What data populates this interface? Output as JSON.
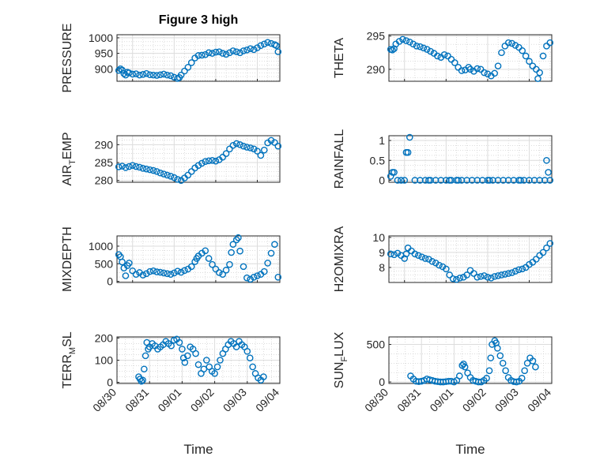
{
  "figure": {
    "title": "Figure 3 high",
    "xlabel": "Time"
  },
  "colors": {
    "marker": "#0072BD",
    "axis": "#262626",
    "grid": "#c8c8c8"
  },
  "chart_data": [
    {
      "type": "scatter",
      "ylabel": "PRESSURE",
      "ylabel_sub": "",
      "ylim": [
        860,
        1010
      ],
      "yticks": [
        900,
        950,
        1000
      ],
      "x": [
        "2011-08-30T16:00",
        "2011-08-30T17:00",
        "2011-08-30T18:00",
        "2011-08-30T19:00",
        "2011-08-30T20:00",
        "2011-08-30T21:00",
        "2011-08-30T22:00",
        "2011-08-31T00:00",
        "2011-08-31T02:00",
        "2011-08-31T04:00",
        "2011-08-31T06:00",
        "2011-08-31T08:00",
        "2011-08-31T10:00",
        "2011-08-31T12:00",
        "2011-08-31T14:00",
        "2011-08-31T16:00",
        "2011-08-31T18:00",
        "2011-08-31T20:00",
        "2011-08-31T22:00",
        "2011-09-01T00:00",
        "2011-09-01T02:00",
        "2011-09-01T03:00",
        "2011-09-01T04:00",
        "2011-09-01T06:00",
        "2011-09-01T08:00",
        "2011-09-01T10:00",
        "2011-09-01T12:00",
        "2011-09-01T14:00",
        "2011-09-01T16:00",
        "2011-09-01T18:00",
        "2011-09-01T20:00",
        "2011-09-01T22:00",
        "2011-09-02T00:00",
        "2011-09-02T02:00",
        "2011-09-02T04:00",
        "2011-09-02T06:00",
        "2011-09-02T08:00",
        "2011-09-02T10:00",
        "2011-09-02T12:00",
        "2011-09-02T14:00",
        "2011-09-02T16:00",
        "2011-09-02T18:00",
        "2011-09-02T20:00",
        "2011-09-02T22:00",
        "2011-09-03T00:00",
        "2011-09-03T02:00",
        "2011-09-03T04:00",
        "2011-09-03T06:00",
        "2011-09-03T08:00",
        "2011-09-03T10:00",
        "2011-09-03T11:00",
        "2011-09-03T12:00"
      ],
      "values": [
        895,
        900,
        896,
        885,
        880,
        889,
        887,
        883,
        884,
        880,
        882,
        885,
        881,
        880,
        879,
        881,
        883,
        880,
        878,
        873,
        869,
        872,
        880,
        893,
        905,
        920,
        935,
        943,
        944,
        946,
        952,
        950,
        954,
        955,
        950,
        947,
        952,
        958,
        955,
        952,
        958,
        961,
        965,
        962,
        968,
        975,
        980,
        985,
        982,
        978,
        975,
        955
      ]
    },
    {
      "type": "scatter",
      "ylabel": "THETA",
      "ylabel_sub": "",
      "ylim": [
        288.2,
        295.2
      ],
      "yticks": [
        290,
        295
      ],
      "x": [
        "2011-08-30T16:00",
        "2011-08-30T17:00",
        "2011-08-30T18:00",
        "2011-08-30T19:00",
        "2011-08-30T21:00",
        "2011-08-30T23:00",
        "2011-08-31T01:00",
        "2011-08-31T03:00",
        "2011-08-31T05:00",
        "2011-08-31T07:00",
        "2011-08-31T09:00",
        "2011-08-31T11:00",
        "2011-08-31T13:00",
        "2011-08-31T15:00",
        "2011-08-31T17:00",
        "2011-08-31T19:00",
        "2011-08-31T21:00",
        "2011-08-31T23:00",
        "2011-09-01T01:00",
        "2011-09-01T03:00",
        "2011-09-01T05:00",
        "2011-09-01T07:00",
        "2011-09-01T09:00",
        "2011-09-01T11:00",
        "2011-09-01T13:00",
        "2011-09-01T14:00",
        "2011-09-01T16:00",
        "2011-09-01T18:00",
        "2011-09-01T20:00",
        "2011-09-01T22:00",
        "2011-09-02T00:00",
        "2011-09-02T02:00",
        "2011-09-02T04:00",
        "2011-09-02T06:00",
        "2011-09-02T08:00",
        "2011-09-02T10:00",
        "2011-09-02T12:00",
        "2011-09-02T14:00",
        "2011-09-02T16:00",
        "2011-09-02T18:00",
        "2011-09-02T20:00",
        "2011-09-02T22:00",
        "2011-09-03T00:00",
        "2011-09-03T02:00",
        "2011-09-03T04:00",
        "2011-09-03T05:00",
        "2011-09-03T06:00",
        "2011-09-03T08:00",
        "2011-09-03T10:00",
        "2011-09-03T12:00"
      ],
      "values": [
        293.0,
        292.9,
        293.1,
        293.8,
        294.2,
        294.5,
        294.3,
        294.1,
        293.8,
        293.5,
        293.4,
        293.2,
        293.0,
        292.7,
        292.4,
        292.0,
        291.8,
        292.2,
        292.0,
        291.5,
        291.0,
        290.3,
        289.8,
        289.9,
        290.3,
        290.0,
        289.7,
        290.1,
        290.0,
        289.5,
        289.3,
        289.0,
        289.4,
        290.5,
        292.5,
        293.5,
        294.0,
        293.9,
        293.6,
        293.3,
        292.8,
        292.0,
        291.2,
        290.5,
        290.0,
        288.6,
        289.5,
        292.0,
        293.5,
        294.0
      ]
    },
    {
      "type": "scatter",
      "ylabel": "AIR",
      "ylabel_sub": "T",
      "ylabel_rest": "EMP",
      "ylim": [
        279.5,
        292.5
      ],
      "yticks": [
        280,
        285,
        290
      ],
      "x": [
        "2011-08-30T16:00",
        "2011-08-30T18:00",
        "2011-08-30T20:00",
        "2011-08-30T22:00",
        "2011-08-31T00:00",
        "2011-08-31T02:00",
        "2011-08-31T04:00",
        "2011-08-31T06:00",
        "2011-08-31T08:00",
        "2011-08-31T10:00",
        "2011-08-31T12:00",
        "2011-08-31T14:00",
        "2011-08-31T16:00",
        "2011-08-31T18:00",
        "2011-08-31T20:00",
        "2011-08-31T22:00",
        "2011-09-01T00:00",
        "2011-09-01T02:00",
        "2011-09-01T04:00",
        "2011-09-01T06:00",
        "2011-09-01T08:00",
        "2011-09-01T10:00",
        "2011-09-01T12:00",
        "2011-09-01T14:00",
        "2011-09-01T16:00",
        "2011-09-01T18:00",
        "2011-09-01T20:00",
        "2011-09-01T22:00",
        "2011-09-02T00:00",
        "2011-09-02T02:00",
        "2011-09-02T04:00",
        "2011-09-02T06:00",
        "2011-09-02T08:00",
        "2011-09-02T10:00",
        "2011-09-02T12:00",
        "2011-09-02T14:00",
        "2011-09-02T16:00",
        "2011-09-02T18:00",
        "2011-09-02T20:00",
        "2011-09-02T22:00",
        "2011-09-03T00:00",
        "2011-09-03T02:00",
        "2011-09-03T04:00",
        "2011-09-03T06:00",
        "2011-09-03T08:00",
        "2011-09-03T10:00",
        "2011-09-03T12:00"
      ],
      "values": [
        283.8,
        284.0,
        283.6,
        283.9,
        284.2,
        283.9,
        283.7,
        283.4,
        283.2,
        283.0,
        282.8,
        282.5,
        282.1,
        281.8,
        281.5,
        281.2,
        280.8,
        280.3,
        280.0,
        280.7,
        281.5,
        282.5,
        283.5,
        284.2,
        284.8,
        285.3,
        285.5,
        285.6,
        285.4,
        285.8,
        286.5,
        287.5,
        288.8,
        289.8,
        290.3,
        290.0,
        289.6,
        289.3,
        289.1,
        288.8,
        288.2,
        287.0,
        288.5,
        290.5,
        291.2,
        290.6,
        289.6
      ]
    },
    {
      "type": "scatter",
      "ylabel": "RAINFALL",
      "ylabel_sub": "",
      "ylim": [
        -0.05,
        1.12
      ],
      "yticks": [
        0,
        0.5,
        1
      ],
      "x": [
        "2011-08-30T16:00",
        "2011-08-30T17:00",
        "2011-08-30T18:00",
        "2011-08-30T20:00",
        "2011-08-30T22:00",
        "2011-08-31T00:00",
        "2011-08-31T01:00",
        "2011-08-31T02:00",
        "2011-08-31T03:00",
        "2011-08-31T06:00",
        "2011-08-31T09:00",
        "2011-08-31T12:00",
        "2011-08-31T15:00",
        "2011-08-31T18:00",
        "2011-08-31T21:00",
        "2011-09-01T00:00",
        "2011-09-01T03:00",
        "2011-09-01T06:00",
        "2011-09-01T09:00",
        "2011-09-01T12:00",
        "2011-09-01T15:00",
        "2011-09-01T18:00",
        "2011-09-01T21:00",
        "2011-09-02T00:00",
        "2011-09-02T03:00",
        "2011-09-02T06:00",
        "2011-09-02T09:00",
        "2011-09-02T12:00",
        "2011-09-02T15:00",
        "2011-09-02T18:00",
        "2011-09-02T21:00",
        "2011-09-03T00:00",
        "2011-09-03T03:00",
        "2011-09-03T06:00",
        "2011-09-03T09:00",
        "2011-09-03T10:00",
        "2011-09-03T11:00",
        "2011-09-03T12:00",
        "2011-08-31T14:00",
        "2011-09-01T02:00",
        "2011-09-01T07:00",
        "2011-09-02T01:00",
        "2011-09-02T19:00"
      ],
      "values": [
        0.1,
        0.2,
        0.2,
        0.0,
        0.0,
        0.0,
        0.7,
        0.7,
        1.08,
        0.0,
        0.0,
        0.0,
        0.0,
        0.0,
        0.0,
        0.0,
        0.0,
        0.0,
        0.0,
        0.0,
        0.0,
        0.0,
        0.0,
        0.0,
        0.0,
        0.0,
        0.0,
        0.0,
        0.0,
        0.0,
        0.0,
        0.0,
        0.0,
        0.0,
        0.0,
        0.5,
        0.2,
        0.0,
        0.0,
        0.0,
        0.0,
        0.0,
        0.0
      ]
    },
    {
      "type": "scatter",
      "ylabel": "MIXDEPTH",
      "ylabel_sub": "",
      "ylim": [
        -30,
        1290
      ],
      "yticks": [
        0,
        500,
        1000
      ],
      "x": [
        "2011-08-30T16:00",
        "2011-08-30T17:00",
        "2011-08-30T18:00",
        "2011-08-30T19:00",
        "2011-08-30T20:00",
        "2011-08-30T21:00",
        "2011-08-30T22:00",
        "2011-08-31T00:00",
        "2011-08-31T02:00",
        "2011-08-31T04:00",
        "2011-08-31T06:00",
        "2011-08-31T08:00",
        "2011-08-31T10:00",
        "2011-08-31T12:00",
        "2011-08-31T14:00",
        "2011-08-31T16:00",
        "2011-08-31T18:00",
        "2011-08-31T20:00",
        "2011-08-31T22:00",
        "2011-09-01T00:00",
        "2011-09-01T02:00",
        "2011-09-01T04:00",
        "2011-09-01T06:00",
        "2011-09-01T08:00",
        "2011-09-01T10:00",
        "2011-09-01T12:00",
        "2011-09-01T13:00",
        "2011-09-01T14:00",
        "2011-09-01T16:00",
        "2011-09-01T18:00",
        "2011-09-01T20:00",
        "2011-09-01T22:00",
        "2011-09-02T00:00",
        "2011-09-02T02:00",
        "2011-09-02T04:00",
        "2011-09-02T06:00",
        "2011-09-02T08:00",
        "2011-09-02T09:00",
        "2011-09-02T10:00",
        "2011-09-02T12:00",
        "2011-09-02T13:00",
        "2011-09-02T14:00",
        "2011-09-02T16:00",
        "2011-09-02T18:00",
        "2011-09-02T20:00",
        "2011-09-02T22:00",
        "2011-09-03T00:00",
        "2011-09-03T02:00",
        "2011-09-03T04:00",
        "2011-09-03T06:00",
        "2011-09-03T08:00",
        "2011-09-03T10:00",
        "2011-09-03T12:00"
      ],
      "values": [
        760,
        700,
        550,
        380,
        160,
        450,
        520,
        300,
        200,
        250,
        180,
        220,
        280,
        300,
        270,
        260,
        240,
        220,
        200,
        240,
        290,
        260,
        310,
        350,
        420,
        560,
        650,
        720,
        800,
        870,
        650,
        480,
        350,
        250,
        200,
        320,
        480,
        820,
        1050,
        1180,
        1240,
        860,
        420,
        100,
        60,
        120,
        160,
        200,
        280,
        520,
        800,
        1050,
        120
      ]
    },
    {
      "type": "scatter",
      "ylabel": "H2OMIXRA",
      "ylabel_sub": "",
      "ylim": [
        7.0,
        10.1
      ],
      "yticks": [
        8,
        9,
        10
      ],
      "x": [
        "2011-08-30T16:00",
        "2011-08-30T18:00",
        "2011-08-30T20:00",
        "2011-08-30T22:00",
        "2011-08-31T00:00",
        "2011-08-31T01:00",
        "2011-08-31T02:00",
        "2011-08-31T04:00",
        "2011-08-31T06:00",
        "2011-08-31T08:00",
        "2011-08-31T10:00",
        "2011-08-31T12:00",
        "2011-08-31T14:00",
        "2011-08-31T16:00",
        "2011-08-31T18:00",
        "2011-08-31T20:00",
        "2011-08-31T22:00",
        "2011-09-01T00:00",
        "2011-09-01T02:00",
        "2011-09-01T04:00",
        "2011-09-01T06:00",
        "2011-09-01T08:00",
        "2011-09-01T10:00",
        "2011-09-01T12:00",
        "2011-09-01T14:00",
        "2011-09-01T16:00",
        "2011-09-01T18:00",
        "2011-09-01T20:00",
        "2011-09-01T22:00",
        "2011-09-02T00:00",
        "2011-09-02T02:00",
        "2011-09-02T04:00",
        "2011-09-02T06:00",
        "2011-09-02T08:00",
        "2011-09-02T10:00",
        "2011-09-02T12:00",
        "2011-09-02T14:00",
        "2011-09-02T16:00",
        "2011-09-02T18:00",
        "2011-09-02T20:00",
        "2011-09-02T22:00",
        "2011-09-03T00:00",
        "2011-09-03T02:00",
        "2011-09-03T04:00",
        "2011-09-03T06:00",
        "2011-09-03T08:00",
        "2011-09-03T10:00",
        "2011-09-03T12:00"
      ],
      "values": [
        8.9,
        8.85,
        8.95,
        8.8,
        8.6,
        8.9,
        9.3,
        9.1,
        8.9,
        8.8,
        8.7,
        8.6,
        8.55,
        8.4,
        8.3,
        8.15,
        8.05,
        7.9,
        7.5,
        7.25,
        7.2,
        7.3,
        7.35,
        7.5,
        7.8,
        7.6,
        7.35,
        7.4,
        7.45,
        7.35,
        7.3,
        7.4,
        7.45,
        7.5,
        7.55,
        7.6,
        7.65,
        7.75,
        7.85,
        7.9,
        8.0,
        8.2,
        8.35,
        8.55,
        8.8,
        9.0,
        9.3,
        9.6
      ]
    },
    {
      "type": "scatter",
      "ylabel": "TERR",
      "ylabel_sub": "M",
      "ylabel_rest": "SL",
      "ylim": [
        -5,
        205
      ],
      "yticks": [
        0,
        100,
        200
      ],
      "x": [
        "2011-08-30T16:00",
        "2011-08-30T17:00",
        "2011-08-30T18:00",
        "2011-08-30T19:00",
        "2011-08-30T20:00",
        "2011-08-30T21:00",
        "2011-08-30T22:00",
        "2011-08-30T23:00",
        "2011-08-31T00:00",
        "2011-08-31T02:00",
        "2011-08-31T04:00",
        "2011-08-31T06:00",
        "2011-08-31T08:00",
        "2011-08-31T10:00",
        "2011-08-31T12:00",
        "2011-08-31T14:00",
        "2011-08-31T16:00",
        "2011-08-31T18:00",
        "2011-08-31T20:00",
        "2011-08-31T22:00",
        "2011-09-01T00:00",
        "2011-09-01T01:00",
        "2011-09-01T02:00",
        "2011-09-01T04:00",
        "2011-09-01T06:00",
        "2011-09-01T08:00",
        "2011-09-01T10:00",
        "2011-09-01T12:00",
        "2011-09-01T14:00",
        "2011-09-01T16:00",
        "2011-09-01T18:00",
        "2011-09-01T20:00",
        "2011-09-01T22:00",
        "2011-09-02T00:00",
        "2011-09-02T02:00",
        "2011-09-02T04:00",
        "2011-09-02T06:00",
        "2011-09-02T08:00",
        "2011-09-02T10:00",
        "2011-09-02T12:00",
        "2011-09-02T14:00",
        "2011-09-02T16:00",
        "2011-09-02T18:00",
        "2011-09-02T20:00",
        "2011-09-02T22:00",
        "2011-09-03T00:00",
        "2011-09-03T02:00",
        "2011-09-03T04:00",
        "2011-09-03T06:00",
        "2011-09-03T08:00",
        "2011-09-03T10:00",
        "2011-09-03T12:00"
      ],
      "values": [
        25,
        15,
        5,
        10,
        60,
        120,
        180,
        150,
        160,
        175,
        165,
        150,
        160,
        170,
        185,
        175,
        165,
        190,
        195,
        180,
        150,
        110,
        90,
        120,
        160,
        150,
        130,
        80,
        40,
        60,
        100,
        70,
        50,
        40,
        70,
        100,
        130,
        150,
        170,
        185,
        175,
        160,
        185,
        170,
        160,
        140,
        110,
        70,
        40,
        20,
        10,
        25
      ]
    },
    {
      "type": "scatter",
      "ylabel": "SUN",
      "ylabel_sub": "F",
      "ylabel_rest": "LUX",
      "ylim": [
        -20,
        600
      ],
      "yticks": [
        0,
        500
      ],
      "x": [
        "2011-08-30T16:00",
        "2011-08-30T18:00",
        "2011-08-30T20:00",
        "2011-08-30T22:00",
        "2011-08-31T00:00",
        "2011-08-31T02:00",
        "2011-08-31T04:00",
        "2011-08-31T06:00",
        "2011-08-31T08:00",
        "2011-08-31T10:00",
        "2011-08-31T12:00",
        "2011-08-31T14:00",
        "2011-08-31T16:00",
        "2011-08-31T18:00",
        "2011-08-31T20:00",
        "2011-08-31T22:00",
        "2011-09-01T00:00",
        "2011-09-01T02:00",
        "2011-09-01T04:00",
        "2011-09-01T06:00",
        "2011-09-01T07:00",
        "2011-09-01T08:00",
        "2011-09-01T10:00",
        "2011-09-01T12:00",
        "2011-09-01T14:00",
        "2011-09-01T16:00",
        "2011-09-01T18:00",
        "2011-09-01T20:00",
        "2011-09-01T22:00",
        "2011-09-02T00:00",
        "2011-09-02T02:00",
        "2011-09-02T03:00",
        "2011-09-02T04:00",
        "2011-09-02T06:00",
        "2011-09-02T07:00",
        "2011-09-02T08:00",
        "2011-09-02T10:00",
        "2011-09-02T12:00",
        "2011-09-02T14:00",
        "2011-09-02T16:00",
        "2011-09-02T18:00",
        "2011-09-02T20:00",
        "2011-09-02T22:00",
        "2011-09-03T00:00",
        "2011-09-03T02:00",
        "2011-09-03T04:00",
        "2011-09-03T06:00",
        "2011-09-03T08:00",
        "2011-09-03T10:00",
        "2011-09-03T12:00"
      ],
      "values": [
        80,
        40,
        10,
        5,
        10,
        20,
        40,
        30,
        20,
        10,
        5,
        0,
        0,
        5,
        10,
        10,
        0,
        20,
        80,
        220,
        240,
        200,
        120,
        60,
        20,
        10,
        0,
        0,
        20,
        50,
        150,
        320,
        500,
        550,
        520,
        450,
        350,
        250,
        150,
        60,
        20,
        5,
        0,
        10,
        50,
        150,
        250,
        320,
        280,
        200
      ]
    }
  ],
  "xaxis": {
    "ticks": [
      "2011-08-30T00:00",
      "2011-08-31T00:00",
      "2011-09-01T00:00",
      "2011-09-02T00:00",
      "2011-09-03T00:00",
      "2011-09-04T00:00"
    ],
    "ticklabels": [
      "08/30",
      "08/31",
      "09/01",
      "09/02",
      "09/03",
      "09/04"
    ],
    "xlim_top": [
      "2011-08-30T15:00",
      "2011-09-03T13:00"
    ],
    "xlim_bottom": [
      "2011-08-30T00:00",
      "2011-09-04T00:00"
    ]
  }
}
